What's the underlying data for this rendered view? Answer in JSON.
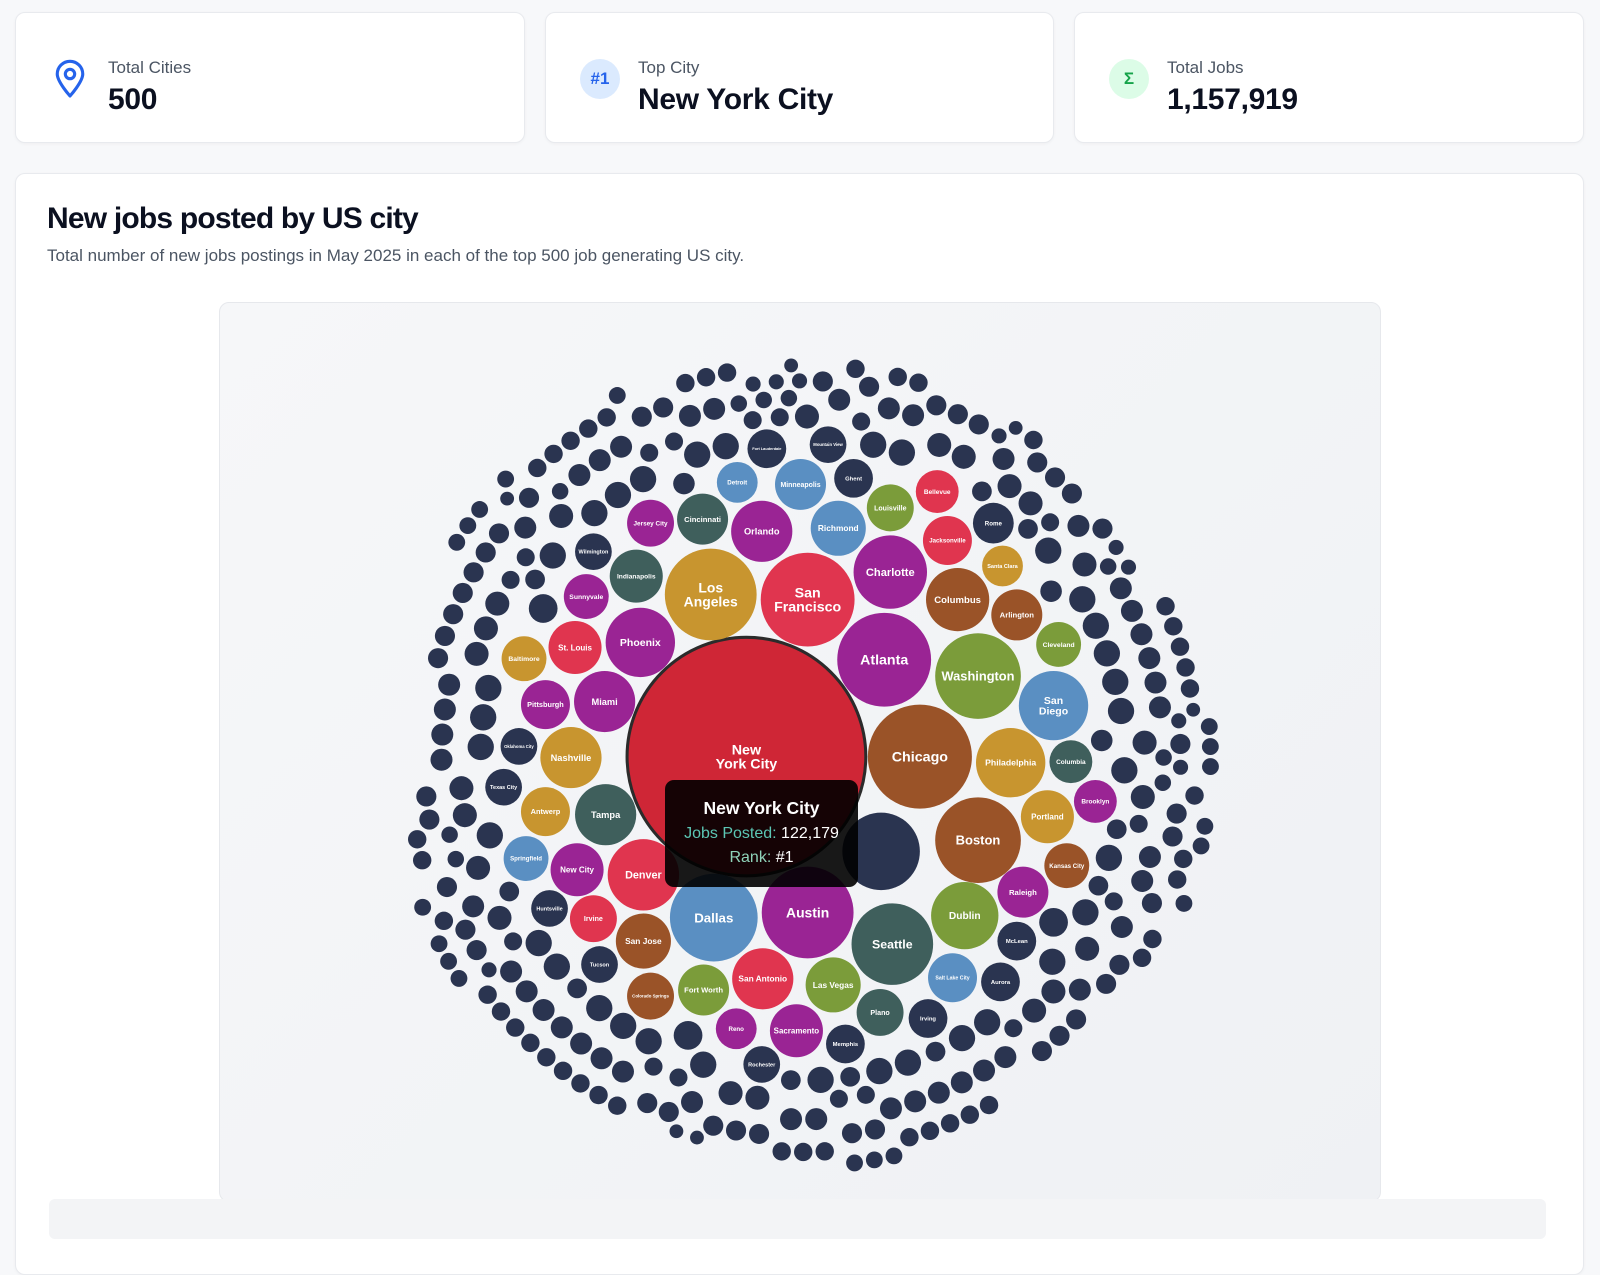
{
  "stats": [
    {
      "label": "Total Cities",
      "value": "500",
      "icon": "map-pin-icon",
      "icon_color": "#2563eb"
    },
    {
      "label": "Top City",
      "value": "New York City",
      "icon": "rank-badge-icon",
      "icon_text": "#1",
      "icon_color": "#2563eb",
      "icon_bg": "#dbeafe"
    },
    {
      "label": "Total Jobs",
      "value": "1,157,919",
      "icon": "sigma-icon",
      "icon_text": "Σ",
      "icon_color": "#16a34a",
      "icon_bg": "#dcfce7"
    }
  ],
  "main": {
    "title": "New jobs posted by US city",
    "subtitle": "Total number of new jobs postings in May 2025 in each of the top 500 job generating US city."
  },
  "tooltip": {
    "city": "New York City",
    "jobs_label": "Jobs Posted:",
    "jobs_value": "122,179",
    "rank_label": "Rank:",
    "rank_value": "#1"
  },
  "chart_data": {
    "type": "bubble-pack",
    "title": "New jobs posted by US city",
    "total_bubbles": 500,
    "unlabeled_color": "#2a3450",
    "highlight": {
      "name": "New York City",
      "value": 122179,
      "rank": 1
    },
    "bubbles": [
      {
        "name": "New York City",
        "label": [
          "New",
          "York City"
        ],
        "color": "#cf2636",
        "value": 122179
      },
      {
        "name": "Los Angeles",
        "label": [
          "Los",
          "Angeles"
        ],
        "color": "#c8952f"
      },
      {
        "name": "San Francisco",
        "label": [
          "San",
          "Francisco"
        ],
        "color": "#e0354f"
      },
      {
        "name": "Atlanta",
        "label": [
          "Atlanta"
        ],
        "color": "#9a2494"
      },
      {
        "name": "Chicago",
        "label": [
          "Chicago"
        ],
        "color": "#9a5328"
      },
      {
        "name": "Washington",
        "label": [
          "Washington"
        ],
        "color": "#7b9c3a"
      },
      {
        "name": "Phoenix",
        "label": [
          "Phoenix"
        ],
        "color": "#9a2494"
      },
      {
        "name": "Miami",
        "label": [
          "Miami"
        ],
        "color": "#9a2494"
      },
      {
        "name": "Charlotte",
        "label": [
          "Charlotte"
        ],
        "color": "#9a2494"
      },
      {
        "name": "Orlando",
        "label": [
          "Orlando"
        ],
        "color": "#9a2494"
      },
      {
        "name": "Richmond",
        "label": [
          "Richmond"
        ],
        "color": "#5a8fc2"
      },
      {
        "name": "Minneapolis",
        "label": [
          "Minneapolis"
        ],
        "color": "#5a8fc2"
      },
      {
        "name": "Detroit",
        "label": [
          "Detroit"
        ],
        "color": "#5a8fc2"
      },
      {
        "name": "Cincinnati",
        "label": [
          "Cincinnati"
        ],
        "color": "#3f5f5c"
      },
      {
        "name": "Jersey City",
        "label": [
          "Jersey City"
        ],
        "color": "#9a2494"
      },
      {
        "name": "Indianapolis",
        "label": [
          "Indianapolis"
        ],
        "color": "#3f5f5c"
      },
      {
        "name": "Sunnyvale",
        "label": [
          "Sunnyvale"
        ],
        "color": "#9a2494"
      },
      {
        "name": "Wilmington",
        "label": [
          "Wilmington"
        ],
        "color": "#2a3450"
      },
      {
        "name": "St. Louis",
        "label": [
          "St. Louis"
        ],
        "color": "#e0354f"
      },
      {
        "name": "Baltimore",
        "label": [
          "Baltimore"
        ],
        "color": "#c8952f"
      },
      {
        "name": "Pittsburgh",
        "label": [
          "Pittsburgh"
        ],
        "color": "#9a2494"
      },
      {
        "name": "Oklahoma City",
        "label": [
          "Oklahoma City"
        ],
        "color": "#2a3450"
      },
      {
        "name": "Nashville",
        "label": [
          "Nashville"
        ],
        "color": "#c8952f"
      },
      {
        "name": "Texas City",
        "label": [
          "Texas City"
        ],
        "color": "#2a3450"
      },
      {
        "name": "Antwerp",
        "label": [
          "Antwerp"
        ],
        "color": "#c8952f"
      },
      {
        "name": "Tampa",
        "label": [
          "Tampa"
        ],
        "color": "#3f5f5c"
      },
      {
        "name": "Springfield",
        "label": [
          "Springfield"
        ],
        "color": "#5a8fc2"
      },
      {
        "name": "New City",
        "label": [
          "New City"
        ],
        "color": "#9a2494"
      },
      {
        "name": "Denver",
        "label": [
          "Denver"
        ],
        "color": "#e0354f"
      },
      {
        "name": "Huntsville",
        "label": [
          "Huntsville"
        ],
        "color": "#2a3450"
      },
      {
        "name": "Irvine",
        "label": [
          "Irvine"
        ],
        "color": "#e0354f"
      },
      {
        "name": "San Jose",
        "label": [
          "San Jose"
        ],
        "color": "#9a5328"
      },
      {
        "name": "Tucson",
        "label": [
          "Tucson"
        ],
        "color": "#2a3450"
      },
      {
        "name": "Colorado Springs",
        "label": [
          "Colorado Springs"
        ],
        "color": "#9a5328"
      },
      {
        "name": "Dallas",
        "label": [
          "Dallas"
        ],
        "color": "#5a8fc2"
      },
      {
        "name": "Fort Worth",
        "label": [
          "Fort Worth"
        ],
        "color": "#7b9c3a"
      },
      {
        "name": "San Antonio",
        "label": [
          "San Antonio"
        ],
        "color": "#e0354f"
      },
      {
        "name": "Reno",
        "label": [
          "Reno"
        ],
        "color": "#9a2494"
      },
      {
        "name": "Sacramento",
        "label": [
          "Sacramento"
        ],
        "color": "#9a2494"
      },
      {
        "name": "Rochester",
        "label": [
          "Rochester"
        ],
        "color": "#2a3450"
      },
      {
        "name": "Memphis",
        "label": [
          "Memphis"
        ],
        "color": "#2a3450"
      },
      {
        "name": "Austin",
        "label": [
          "Austin"
        ],
        "color": "#9a2494"
      },
      {
        "name": "Las Vegas",
        "label": [
          "Las Vegas"
        ],
        "color": "#7b9c3a"
      },
      {
        "name": "Plano",
        "label": [
          "Plano"
        ],
        "color": "#3f5f5c"
      },
      {
        "name": "Seattle",
        "label": [
          "Seattle"
        ],
        "color": "#3f5f5c"
      },
      {
        "name": "Irving",
        "label": [
          "Irving"
        ],
        "color": "#2a3450"
      },
      {
        "name": "Dublin",
        "label": [
          "Dublin"
        ],
        "color": "#7b9c3a"
      },
      {
        "name": "Salt Lake City",
        "label": [
          "Salt Lake City"
        ],
        "color": "#5a8fc2"
      },
      {
        "name": "Aurora",
        "label": [
          "Aurora"
        ],
        "color": "#2a3450"
      },
      {
        "name": "McLean",
        "label": [
          "McLean"
        ],
        "color": "#2a3450"
      },
      {
        "name": "Raleigh",
        "label": [
          "Raleigh"
        ],
        "color": "#9a2494"
      },
      {
        "name": "Boston",
        "label": [
          "Boston"
        ],
        "color": "#9a5328"
      },
      {
        "name": "Kansas City",
        "label": [
          "Kansas City"
        ],
        "color": "#9a5328"
      },
      {
        "name": "Portland",
        "label": [
          "Portland"
        ],
        "color": "#c8952f"
      },
      {
        "name": "Brooklyn",
        "label": [
          "Brooklyn"
        ],
        "color": "#9a2494"
      },
      {
        "name": "Columbia",
        "label": [
          "Columbia"
        ],
        "color": "#3f5f5c"
      },
      {
        "name": "Philadelphia",
        "label": [
          "Philadelphia"
        ],
        "color": "#c8952f"
      },
      {
        "name": "San Diego",
        "label": [
          "San",
          "Diego"
        ],
        "color": "#5a8fc2"
      },
      {
        "name": "Cleveland",
        "label": [
          "Cleveland"
        ],
        "color": "#7b9c3a"
      },
      {
        "name": "Arlington",
        "label": [
          "Arlington"
        ],
        "color": "#9a5328"
      },
      {
        "name": "Columbus",
        "label": [
          "Columbus"
        ],
        "color": "#9a5328"
      },
      {
        "name": "Santa Clara",
        "label": [
          "Santa Clara"
        ],
        "color": "#c8952f"
      },
      {
        "name": "Jacksonville",
        "label": [
          "Jacksonville"
        ],
        "color": "#e0354f"
      },
      {
        "name": "Bellevue",
        "label": [
          "Bellevue"
        ],
        "color": "#e0354f"
      },
      {
        "name": "Louisville",
        "label": [
          "Louisville"
        ],
        "color": "#7b9c3a"
      },
      {
        "name": "Rome",
        "label": [
          "Rome"
        ],
        "color": "#2a3450"
      },
      {
        "name": "Ghent",
        "label": [
          "Ghent"
        ],
        "color": "#2a3450"
      },
      {
        "name": "Mountain View",
        "label": [
          "Mountain View"
        ],
        "color": "#2a3450"
      },
      {
        "name": "Fort Lauderdale",
        "label": [
          "Fort Lauderdale"
        ],
        "color": "#2a3450"
      }
    ]
  }
}
